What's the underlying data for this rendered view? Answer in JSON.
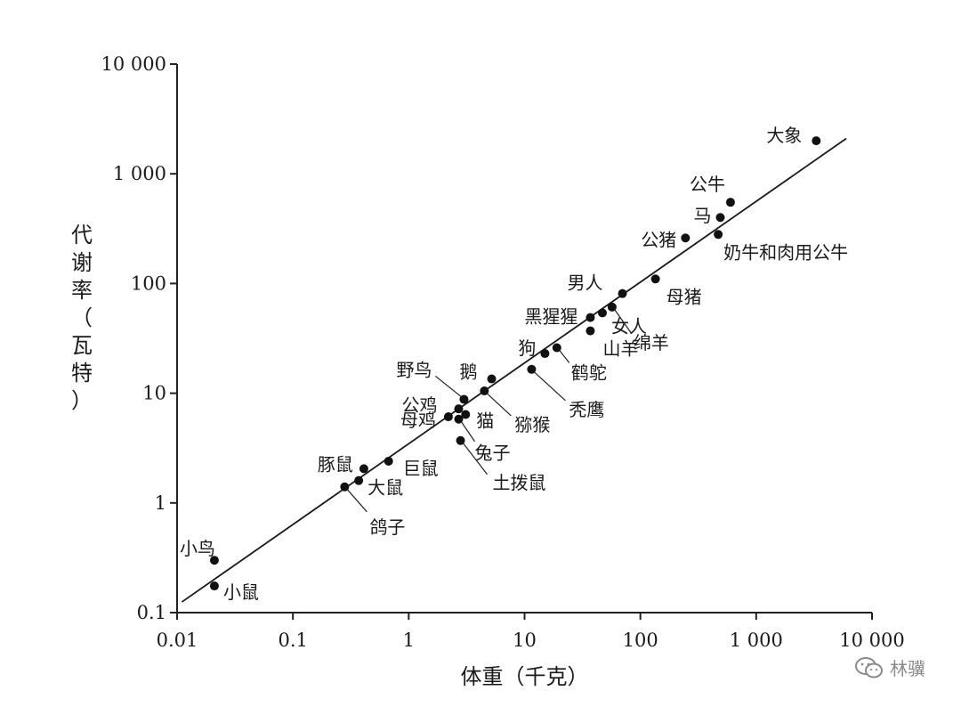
{
  "chart_data": {
    "type": "scatter",
    "xscale": "log",
    "yscale": "log",
    "xlabel": "体重（千克）",
    "ylabel": "代谢率（瓦特）",
    "xlim": [
      0.01,
      10000
    ],
    "ylim": [
      0.1,
      10000
    ],
    "x_ticks": [
      {
        "value": 0.01,
        "label": "0.01"
      },
      {
        "value": 0.1,
        "label": "0.1"
      },
      {
        "value": 1,
        "label": "1"
      },
      {
        "value": 10,
        "label": "10"
      },
      {
        "value": 100,
        "label": "100"
      },
      {
        "value": 1000,
        "label": "1 000"
      },
      {
        "value": 10000,
        "label": "10 000"
      }
    ],
    "y_ticks": [
      {
        "value": 0.1,
        "label": "0.1"
      },
      {
        "value": 1,
        "label": "1"
      },
      {
        "value": 10,
        "label": "10"
      },
      {
        "value": 100,
        "label": "100"
      },
      {
        "value": 1000,
        "label": "1 000"
      },
      {
        "value": 10000,
        "label": "10 000"
      }
    ],
    "grid": false,
    "fit_line": {
      "x": [
        0.011,
        6000
      ],
      "y": [
        0.125,
        2100
      ]
    },
    "points": [
      {
        "name": "小鸟",
        "x": 0.021,
        "y": 0.3
      },
      {
        "name": "小鼠",
        "x": 0.021,
        "y": 0.175
      },
      {
        "name": "鸽子",
        "x": 0.28,
        "y": 1.4
      },
      {
        "name": "大鼠",
        "x": 0.37,
        "y": 1.6
      },
      {
        "name": "豚鼠",
        "x": 0.41,
        "y": 2.05
      },
      {
        "name": "巨鼠",
        "x": 0.67,
        "y": 2.4
      },
      {
        "name": "母鸡",
        "x": 2.2,
        "y": 6.1
      },
      {
        "name": "公鸡",
        "x": 2.7,
        "y": 7.2
      },
      {
        "name": "野鸟",
        "x": 3.0,
        "y": 8.8
      },
      {
        "name": "猫",
        "x": 3.1,
        "y": 6.4
      },
      {
        "name": "兔子",
        "x": 2.7,
        "y": 5.8
      },
      {
        "name": "土拨鼠",
        "x": 2.8,
        "y": 3.7
      },
      {
        "name": "猕猴",
        "x": 4.5,
        "y": 10.5
      },
      {
        "name": "鹅",
        "x": 5.2,
        "y": 13.5
      },
      {
        "name": "秃鹰",
        "x": 11.5,
        "y": 16.5
      },
      {
        "name": "狗",
        "x": 15,
        "y": 23
      },
      {
        "name": "鹤鸵",
        "x": 19,
        "y": 26
      },
      {
        "name": "山羊",
        "x": 37,
        "y": 37
      },
      {
        "name": "黑猩猩",
        "x": 37,
        "y": 49
      },
      {
        "name": "女人",
        "x": 47,
        "y": 54
      },
      {
        "name": "绵羊",
        "x": 57,
        "y": 61
      },
      {
        "name": "男人",
        "x": 70,
        "y": 81
      },
      {
        "name": "母猪",
        "x": 135,
        "y": 110
      },
      {
        "name": "公猪",
        "x": 245,
        "y": 260
      },
      {
        "name": "奶牛和肉用公牛",
        "x": 470,
        "y": 280
      },
      {
        "name": "马",
        "x": 490,
        "y": 400
      },
      {
        "name": "公牛",
        "x": 600,
        "y": 550
      },
      {
        "name": "大象",
        "x": 3300,
        "y": 2000
      }
    ]
  },
  "watermark": {
    "text": "林骥",
    "icon": "wechat-icon"
  }
}
